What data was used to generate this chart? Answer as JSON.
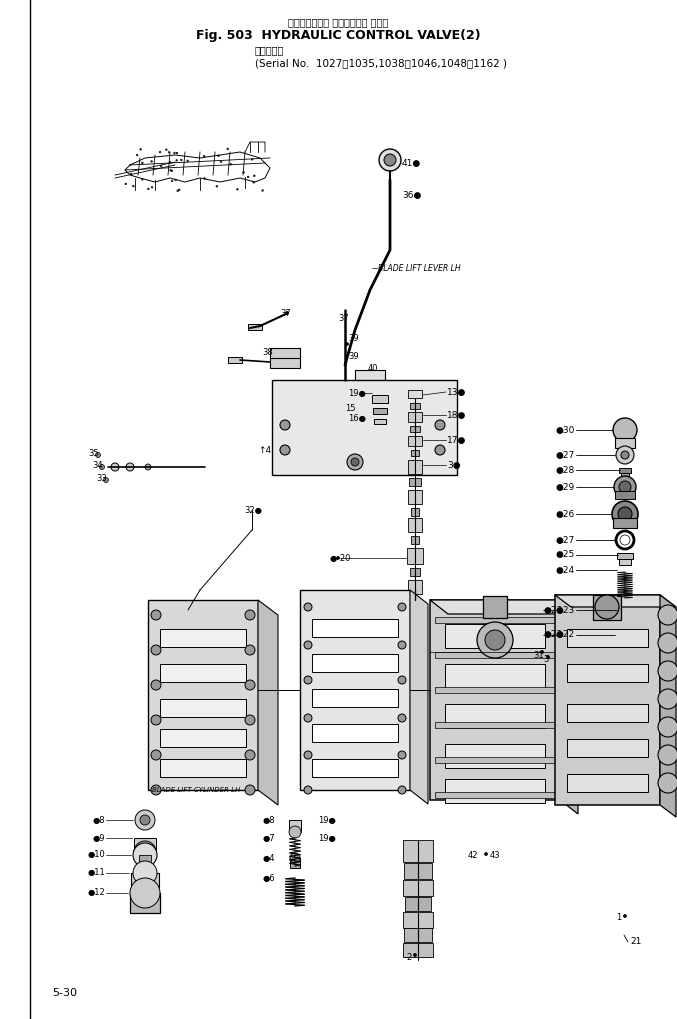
{
  "title_jp": "ハイドロリック コントロール バルブ",
  "title_en": "Fig. 503  HYDRAULIC CONTROL VALVE(2)",
  "title_jp2": "（応用号機",
  "serial": "(Serial No.  1027～1035,1038～1046,1048～1162 )",
  "page": "5-30",
  "bg": "#ffffff",
  "fg": "#000000",
  "gray1": "#888888",
  "gray2": "#aaaaaa",
  "gray3": "#cccccc",
  "gray4": "#dddddd",
  "figsize": [
    6.77,
    10.19
  ],
  "dpi": 100
}
